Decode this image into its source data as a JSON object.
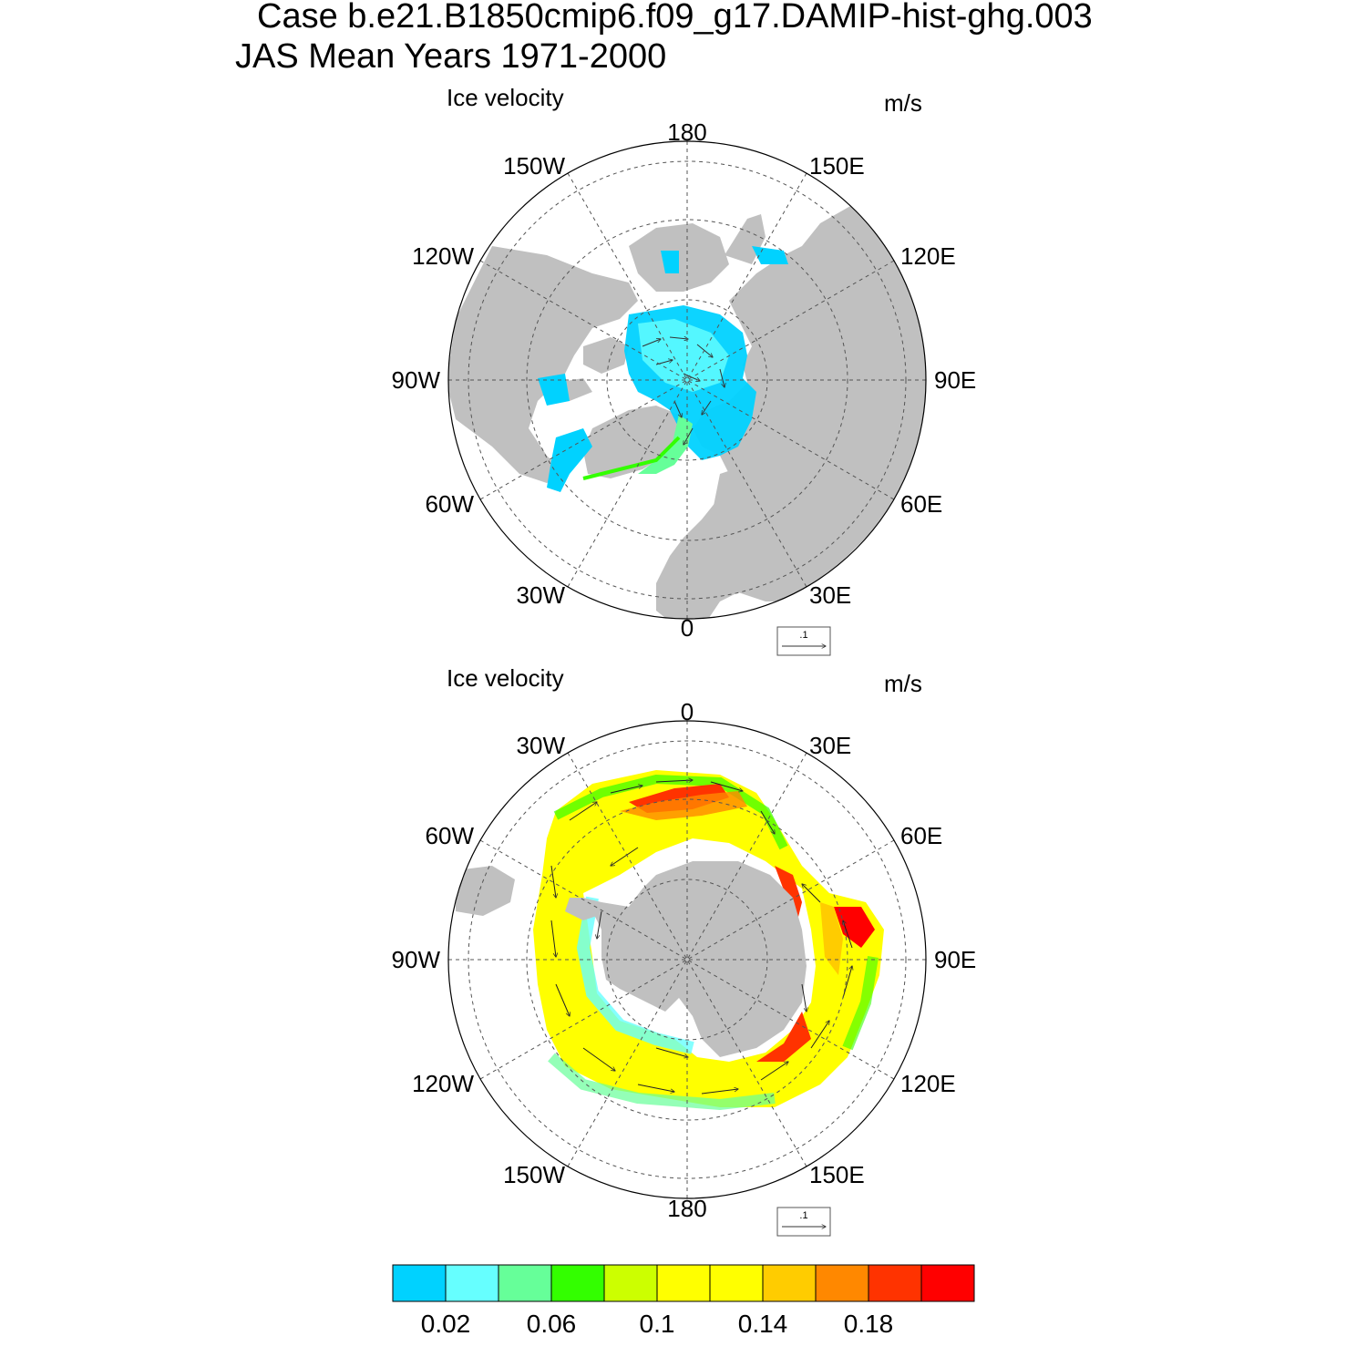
{
  "header": {
    "line1": "Case b.e21.B1850cmip6.f09_g17.DAMIP-hist-ghg.003",
    "line2": "JAS Mean   Years 1971-2000"
  },
  "panels": [
    {
      "id": "north",
      "title": "Ice velocity",
      "units": "m/s",
      "hemisphere": "north",
      "lon_labels": [
        "180",
        "150E",
        "120E",
        "90E",
        "60E",
        "30E",
        "0",
        "30W",
        "60W",
        "90W",
        "120W",
        "150W"
      ],
      "reference_vector_label": ".1"
    },
    {
      "id": "south",
      "title": "Ice velocity",
      "units": "m/s",
      "hemisphere": "south",
      "lon_labels": [
        "0",
        "30E",
        "60E",
        "90E",
        "120E",
        "150E",
        "180",
        "150W",
        "120W",
        "90W",
        "60W",
        "30W"
      ],
      "reference_vector_label": ".1"
    }
  ],
  "colorbar": {
    "colors": [
      "#00d2ff",
      "#66ffff",
      "#66ff99",
      "#33ff00",
      "#ccff00",
      "#ffff00",
      "#ffff00",
      "#ffcc00",
      "#ff8800",
      "#ff3300",
      "#ff0000"
    ],
    "labels": [
      "0.02",
      "0.06",
      "0.1",
      "0.14",
      "0.18"
    ],
    "units": "m/s"
  },
  "colors": {
    "land": "#c0c0c0",
    "grid": "#555555"
  }
}
